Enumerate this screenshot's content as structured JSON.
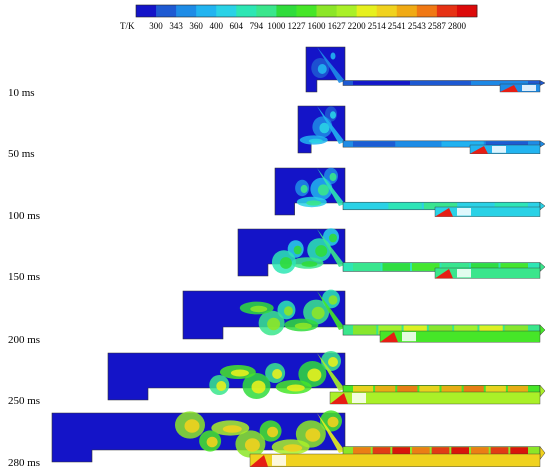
{
  "colorbar": {
    "unit": "T/K",
    "ticks": [
      "300",
      "343",
      "360",
      "400",
      "604",
      "794",
      "1000",
      "1227",
      "1600",
      "1627",
      "2200",
      "2514",
      "2541",
      "2543",
      "2587",
      "2800"
    ],
    "colors": [
      "#1414c8",
      "#1e5ad2",
      "#1e8ce6",
      "#22b4f0",
      "#2ad2e6",
      "#2de6b4",
      "#3ae68c",
      "#30dc3c",
      "#46e628",
      "#8ce628",
      "#aaf028",
      "#e6f01e",
      "#f0d21e",
      "#f0aa14",
      "#f07814",
      "#e63214",
      "#dc0a0a"
    ]
  },
  "frames": [
    {
      "time": "10 ms",
      "level": 0.05
    },
    {
      "time": "50 ms",
      "level": 0.15
    },
    {
      "time": "100 ms",
      "level": 0.3
    },
    {
      "time": "150 ms",
      "level": 0.45
    },
    {
      "time": "200 ms",
      "level": 0.6
    },
    {
      "time": "250 ms",
      "level": 0.8
    },
    {
      "time": "280 ms",
      "level": 0.95
    }
  ]
}
